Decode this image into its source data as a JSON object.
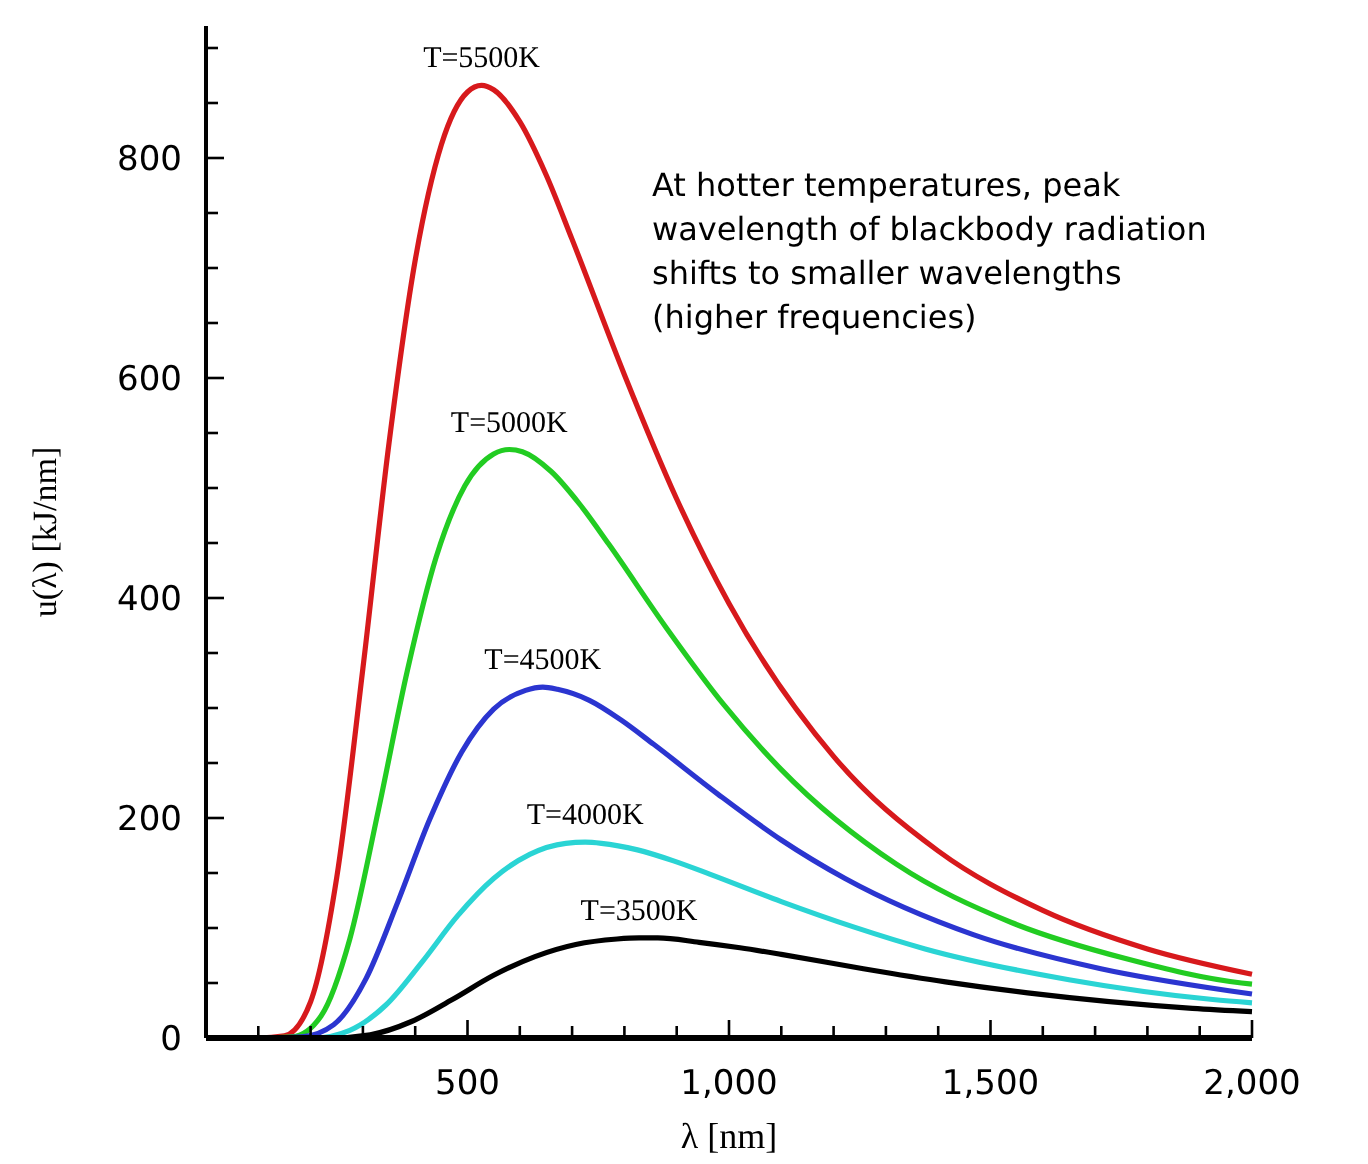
{
  "chart_data": {
    "type": "line",
    "xlabel": "λ [nm]",
    "ylabel": "u(λ) [kJ/nm]",
    "annotations": [
      "At hotter temperatures, peak wavelength of blackbody radiation shifts to smaller wavelengths (higher frequencies)"
    ],
    "xlim": [
      0,
      2000
    ],
    "ylim": [
      0,
      920
    ],
    "xticks": [
      {
        "value": 100,
        "label": null
      },
      {
        "value": 200,
        "label": null
      },
      {
        "value": 300,
        "label": null
      },
      {
        "value": 400,
        "label": null
      },
      {
        "value": 500,
        "label": "500"
      },
      {
        "value": 600,
        "label": null
      },
      {
        "value": 700,
        "label": null
      },
      {
        "value": 800,
        "label": null
      },
      {
        "value": 900,
        "label": null
      },
      {
        "value": 1000,
        "label": "1,000"
      },
      {
        "value": 1100,
        "label": null
      },
      {
        "value": 1200,
        "label": null
      },
      {
        "value": 1300,
        "label": null
      },
      {
        "value": 1400,
        "label": null
      },
      {
        "value": 1500,
        "label": "1,500"
      },
      {
        "value": 1600,
        "label": null
      },
      {
        "value": 1700,
        "label": null
      },
      {
        "value": 1800,
        "label": null
      },
      {
        "value": 1900,
        "label": null
      },
      {
        "value": 2000,
        "label": "2,000"
      }
    ],
    "yticks": [
      0,
      {
        "value": 50,
        "label": null
      },
      {
        "value": 100,
        "label": null
      },
      {
        "value": 150,
        "label": null
      },
      200,
      {
        "value": 250,
        "label": null
      },
      {
        "value": 300,
        "label": null
      },
      {
        "value": 350,
        "label": null
      },
      400,
      {
        "value": 450,
        "label": null
      },
      {
        "value": 500,
        "label": null
      },
      {
        "value": 550,
        "label": null
      },
      600,
      {
        "value": 650,
        "label": null
      },
      {
        "value": 700,
        "label": null
      },
      {
        "value": 750,
        "label": null
      },
      800,
      {
        "value": 850,
        "label": null
      },
      {
        "value": 900,
        "label": null
      }
    ],
    "grid": false,
    "marker": "none",
    "line_style": "solid",
    "series": [
      {
        "name": "T=5500K",
        "color": "#d7191c",
        "x": [
          0,
          100,
          150,
          200,
          250,
          300,
          350,
          400,
          450,
          500,
          527,
          550,
          600,
          650,
          700,
          800,
          900,
          1000,
          1200,
          1400,
          1600,
          1800,
          2000
        ],
        "values": [
          0,
          0,
          2,
          33,
          146,
          336,
          541,
          707,
          812,
          860,
          866,
          862,
          833,
          785,
          726,
          603,
          490,
          395,
          256,
          170,
          116,
          81,
          58
        ]
      },
      {
        "name": "T=5000K",
        "color": "#22cc22",
        "x": [
          0,
          110,
          165,
          220,
          275,
          330,
          385,
          440,
          495,
          550,
          580,
          605,
          660,
          715,
          770,
          880,
          990,
          1100,
          1320,
          1540,
          1760,
          1980,
          2000
        ],
        "values": [
          0,
          0,
          1,
          20,
          90,
          208,
          334,
          437,
          502,
          531,
          535,
          533,
          515,
          485,
          449,
          373,
          303,
          244,
          158,
          105,
          72,
          50,
          49
        ]
      },
      {
        "name": "T=4500K",
        "color": "#2b35d0",
        "x": [
          0,
          122,
          183,
          244,
          306,
          367,
          428,
          489,
          550,
          611,
          644,
          672,
          733,
          794,
          856,
          978,
          1100,
          1222,
          1467,
          1711,
          1956,
          2000
        ],
        "values": [
          0,
          0,
          1,
          12,
          54,
          124,
          199,
          260,
          299,
          316,
          319,
          317,
          307,
          289,
          267,
          222,
          180,
          145,
          94,
          63,
          43,
          40
        ]
      },
      {
        "name": "T=4000K",
        "color": "#2ad4d4",
        "x": [
          0,
          138,
          206,
          275,
          344,
          413,
          481,
          550,
          619,
          688,
          725,
          756,
          825,
          894,
          963,
          1100,
          1238,
          1375,
          1650,
          1925,
          2000
        ],
        "values": [
          0,
          0,
          0,
          7,
          30,
          69,
          111,
          145,
          167,
          177,
          178,
          177,
          171,
          161,
          149,
          124,
          101,
          81,
          53,
          35,
          32
        ]
      },
      {
        "name": "T=3500K",
        "color": "#000000",
        "x": [
          0,
          157,
          236,
          314,
          393,
          471,
          550,
          629,
          707,
          786,
          828,
          864,
          943,
          1021,
          1100,
          1257,
          1414,
          1571,
          1886,
          2000
        ],
        "values": [
          0,
          0,
          0,
          3,
          15,
          35,
          57,
          74,
          85,
          90,
          91,
          91,
          87,
          82,
          76,
          63,
          51,
          41,
          27,
          24
        ]
      }
    ]
  }
}
